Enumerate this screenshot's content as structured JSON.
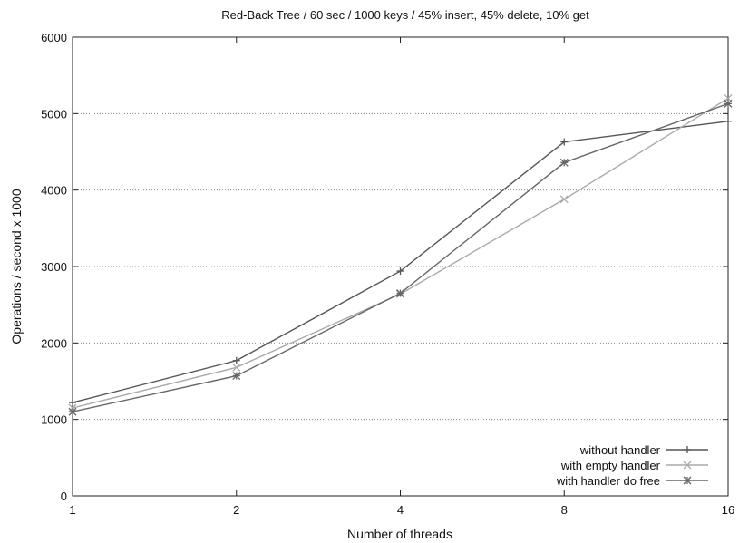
{
  "chart_data": {
    "type": "line",
    "title": "Red-Back Tree / 60 sec / 1000 keys / 45% insert, 45% delete, 10% get",
    "xlabel": "Number of threads",
    "ylabel": "Operations / second x 1000",
    "x": [
      1,
      2,
      4,
      8,
      16
    ],
    "x_scale": "log2",
    "xticks": [
      "1",
      "2",
      "4",
      "8",
      "16"
    ],
    "ylim": [
      0,
      6000
    ],
    "yticks": [
      "0",
      "1000",
      "2000",
      "3000",
      "4000",
      "5000",
      "6000"
    ],
    "grid": "horizontal dotted",
    "legend_position": "bottom-right",
    "series": [
      {
        "name": "without handler",
        "values": [
          1220,
          1770,
          2940,
          4630,
          4900
        ],
        "color": "#555555",
        "marker": "plus"
      },
      {
        "name": "with empty handler",
        "values": [
          1150,
          1680,
          2640,
          3880,
          5200
        ],
        "color": "#aaaaaa",
        "marker": "cross"
      },
      {
        "name": "with handler do free",
        "values": [
          1100,
          1570,
          2650,
          4360,
          5130
        ],
        "color": "#666666",
        "marker": "star"
      }
    ]
  }
}
